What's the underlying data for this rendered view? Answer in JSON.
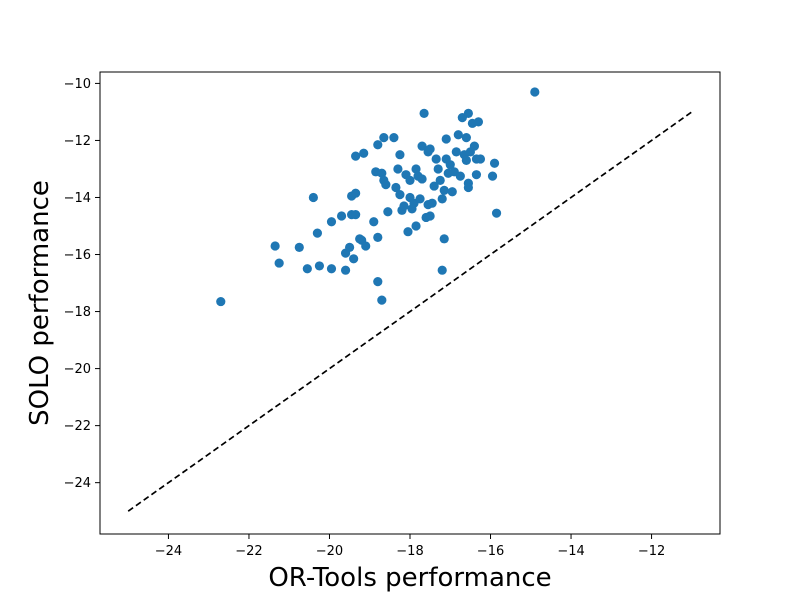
{
  "chart_data": {
    "type": "scatter",
    "title": "",
    "xlabel": "OR-Tools performance",
    "ylabel": "SOLO performance",
    "xlim": [
      -25.7,
      -10.3
    ],
    "ylim": [
      -25.8,
      -9.6
    ],
    "x_ticks": [
      -24,
      -22,
      -20,
      -18,
      -16,
      -14,
      -12
    ],
    "y_ticks": [
      -24,
      -22,
      -20,
      -18,
      -16,
      -14,
      -12,
      -10
    ],
    "grid": false,
    "marker_color": "#1f77b4",
    "reference_line": {
      "style": "dashed",
      "color": "#000000",
      "x": [
        -25,
        -11
      ],
      "y": [
        -25,
        -11
      ]
    },
    "series": [
      {
        "points": [
          [
            -22.7,
            -17.65
          ],
          [
            -21.35,
            -15.7
          ],
          [
            -21.25,
            -16.3
          ],
          [
            -20.75,
            -15.75
          ],
          [
            -20.55,
            -16.5
          ],
          [
            -20.4,
            -14.0
          ],
          [
            -20.3,
            -15.25
          ],
          [
            -20.25,
            -16.4
          ],
          [
            -19.95,
            -14.85
          ],
          [
            -19.95,
            -16.5
          ],
          [
            -19.7,
            -14.65
          ],
          [
            -19.6,
            -15.95
          ],
          [
            -19.6,
            -16.55
          ],
          [
            -19.5,
            -15.75
          ],
          [
            -19.45,
            -14.6
          ],
          [
            -19.45,
            -13.95
          ],
          [
            -19.4,
            -16.15
          ],
          [
            -19.35,
            -14.6
          ],
          [
            -19.35,
            -13.85
          ],
          [
            -19.35,
            -12.55
          ],
          [
            -19.25,
            -15.45
          ],
          [
            -19.2,
            -15.5
          ],
          [
            -19.15,
            -12.45
          ],
          [
            -19.1,
            -15.7
          ],
          [
            -18.9,
            -14.85
          ],
          [
            -18.85,
            -13.1
          ],
          [
            -18.8,
            -15.4
          ],
          [
            -18.8,
            -16.95
          ],
          [
            -18.8,
            -12.15
          ],
          [
            -18.7,
            -13.15
          ],
          [
            -18.7,
            -17.6
          ],
          [
            -18.65,
            -11.9
          ],
          [
            -18.65,
            -13.4
          ],
          [
            -18.6,
            -13.55
          ],
          [
            -18.55,
            -14.5
          ],
          [
            -18.4,
            -11.9
          ],
          [
            -18.35,
            -13.65
          ],
          [
            -18.3,
            -13.0
          ],
          [
            -18.25,
            -12.5
          ],
          [
            -18.25,
            -13.9
          ],
          [
            -18.2,
            -14.45
          ],
          [
            -18.15,
            -14.3
          ],
          [
            -18.1,
            -13.2
          ],
          [
            -18.05,
            -15.2
          ],
          [
            -18.0,
            -14.0
          ],
          [
            -18.0,
            -13.4
          ],
          [
            -17.95,
            -14.4
          ],
          [
            -17.9,
            -14.2
          ],
          [
            -17.85,
            -15.0
          ],
          [
            -17.85,
            -13.0
          ],
          [
            -17.8,
            -13.25
          ],
          [
            -17.75,
            -14.05
          ],
          [
            -17.7,
            -12.2
          ],
          [
            -17.7,
            -13.35
          ],
          [
            -17.65,
            -11.05
          ],
          [
            -17.6,
            -14.7
          ],
          [
            -17.55,
            -12.4
          ],
          [
            -17.55,
            -14.25
          ],
          [
            -17.5,
            -14.65
          ],
          [
            -17.5,
            -12.3
          ],
          [
            -17.45,
            -14.2
          ],
          [
            -17.4,
            -13.6
          ],
          [
            -17.35,
            -12.65
          ],
          [
            -17.3,
            -13.0
          ],
          [
            -17.25,
            -13.4
          ],
          [
            -17.2,
            -14.05
          ],
          [
            -17.2,
            -16.55
          ],
          [
            -17.15,
            -15.45
          ],
          [
            -17.15,
            -13.75
          ],
          [
            -17.1,
            -12.65
          ],
          [
            -17.1,
            -11.95
          ],
          [
            -17.05,
            -13.15
          ],
          [
            -17.0,
            -12.85
          ],
          [
            -16.95,
            -13.8
          ],
          [
            -16.9,
            -13.1
          ],
          [
            -16.85,
            -12.4
          ],
          [
            -16.8,
            -11.8
          ],
          [
            -16.75,
            -13.25
          ],
          [
            -16.7,
            -11.2
          ],
          [
            -16.65,
            -12.5
          ],
          [
            -16.6,
            -12.7
          ],
          [
            -16.6,
            -11.9
          ],
          [
            -16.55,
            -11.05
          ],
          [
            -16.55,
            -13.5
          ],
          [
            -16.55,
            -13.65
          ],
          [
            -16.5,
            -12.4
          ],
          [
            -16.45,
            -11.4
          ],
          [
            -16.4,
            -12.2
          ],
          [
            -16.35,
            -13.2
          ],
          [
            -16.35,
            -12.65
          ],
          [
            -16.3,
            -11.35
          ],
          [
            -16.25,
            -12.65
          ],
          [
            -15.95,
            -13.25
          ],
          [
            -15.9,
            -12.8
          ],
          [
            -15.85,
            -14.55
          ],
          [
            -14.9,
            -10.3
          ]
        ]
      }
    ]
  }
}
